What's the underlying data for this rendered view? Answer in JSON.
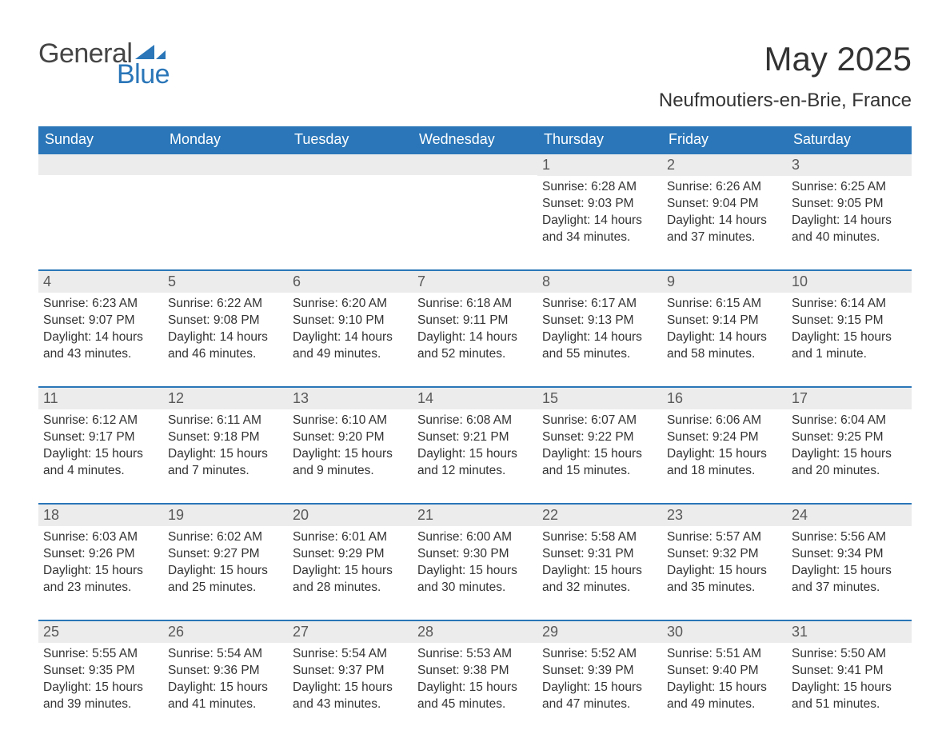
{
  "logo": {
    "text_general": "General",
    "text_blue": "Blue",
    "icon_color": "#2a76b8"
  },
  "title": "May 2025",
  "subtitle": "Neufmoutiers-en-Brie, France",
  "colors": {
    "header_bg": "#2a76b8",
    "header_text": "#ffffff",
    "daynum_bg": "#ececec",
    "daynum_text": "#595959",
    "body_text": "#333333",
    "page_bg": "#ffffff",
    "week_border": "#2a76b8"
  },
  "fonts": {
    "family": "Arial",
    "title_size_pt": 32,
    "subtitle_size_pt": 18,
    "header_size_pt": 14,
    "daynum_size_pt": 14,
    "body_size_pt": 12
  },
  "day_headers": [
    "Sunday",
    "Monday",
    "Tuesday",
    "Wednesday",
    "Thursday",
    "Friday",
    "Saturday"
  ],
  "weeks": [
    [
      {
        "empty": true
      },
      {
        "empty": true
      },
      {
        "empty": true
      },
      {
        "empty": true
      },
      {
        "num": "1",
        "sunrise": "Sunrise: 6:28 AM",
        "sunset": "Sunset: 9:03 PM",
        "daylight1": "Daylight: 14 hours",
        "daylight2": "and 34 minutes."
      },
      {
        "num": "2",
        "sunrise": "Sunrise: 6:26 AM",
        "sunset": "Sunset: 9:04 PM",
        "daylight1": "Daylight: 14 hours",
        "daylight2": "and 37 minutes."
      },
      {
        "num": "3",
        "sunrise": "Sunrise: 6:25 AM",
        "sunset": "Sunset: 9:05 PM",
        "daylight1": "Daylight: 14 hours",
        "daylight2": "and 40 minutes."
      }
    ],
    [
      {
        "num": "4",
        "sunrise": "Sunrise: 6:23 AM",
        "sunset": "Sunset: 9:07 PM",
        "daylight1": "Daylight: 14 hours",
        "daylight2": "and 43 minutes."
      },
      {
        "num": "5",
        "sunrise": "Sunrise: 6:22 AM",
        "sunset": "Sunset: 9:08 PM",
        "daylight1": "Daylight: 14 hours",
        "daylight2": "and 46 minutes."
      },
      {
        "num": "6",
        "sunrise": "Sunrise: 6:20 AM",
        "sunset": "Sunset: 9:10 PM",
        "daylight1": "Daylight: 14 hours",
        "daylight2": "and 49 minutes."
      },
      {
        "num": "7",
        "sunrise": "Sunrise: 6:18 AM",
        "sunset": "Sunset: 9:11 PM",
        "daylight1": "Daylight: 14 hours",
        "daylight2": "and 52 minutes."
      },
      {
        "num": "8",
        "sunrise": "Sunrise: 6:17 AM",
        "sunset": "Sunset: 9:13 PM",
        "daylight1": "Daylight: 14 hours",
        "daylight2": "and 55 minutes."
      },
      {
        "num": "9",
        "sunrise": "Sunrise: 6:15 AM",
        "sunset": "Sunset: 9:14 PM",
        "daylight1": "Daylight: 14 hours",
        "daylight2": "and 58 minutes."
      },
      {
        "num": "10",
        "sunrise": "Sunrise: 6:14 AM",
        "sunset": "Sunset: 9:15 PM",
        "daylight1": "Daylight: 15 hours",
        "daylight2": "and 1 minute."
      }
    ],
    [
      {
        "num": "11",
        "sunrise": "Sunrise: 6:12 AM",
        "sunset": "Sunset: 9:17 PM",
        "daylight1": "Daylight: 15 hours",
        "daylight2": "and 4 minutes."
      },
      {
        "num": "12",
        "sunrise": "Sunrise: 6:11 AM",
        "sunset": "Sunset: 9:18 PM",
        "daylight1": "Daylight: 15 hours",
        "daylight2": "and 7 minutes."
      },
      {
        "num": "13",
        "sunrise": "Sunrise: 6:10 AM",
        "sunset": "Sunset: 9:20 PM",
        "daylight1": "Daylight: 15 hours",
        "daylight2": "and 9 minutes."
      },
      {
        "num": "14",
        "sunrise": "Sunrise: 6:08 AM",
        "sunset": "Sunset: 9:21 PM",
        "daylight1": "Daylight: 15 hours",
        "daylight2": "and 12 minutes."
      },
      {
        "num": "15",
        "sunrise": "Sunrise: 6:07 AM",
        "sunset": "Sunset: 9:22 PM",
        "daylight1": "Daylight: 15 hours",
        "daylight2": "and 15 minutes."
      },
      {
        "num": "16",
        "sunrise": "Sunrise: 6:06 AM",
        "sunset": "Sunset: 9:24 PM",
        "daylight1": "Daylight: 15 hours",
        "daylight2": "and 18 minutes."
      },
      {
        "num": "17",
        "sunrise": "Sunrise: 6:04 AM",
        "sunset": "Sunset: 9:25 PM",
        "daylight1": "Daylight: 15 hours",
        "daylight2": "and 20 minutes."
      }
    ],
    [
      {
        "num": "18",
        "sunrise": "Sunrise: 6:03 AM",
        "sunset": "Sunset: 9:26 PM",
        "daylight1": "Daylight: 15 hours",
        "daylight2": "and 23 minutes."
      },
      {
        "num": "19",
        "sunrise": "Sunrise: 6:02 AM",
        "sunset": "Sunset: 9:27 PM",
        "daylight1": "Daylight: 15 hours",
        "daylight2": "and 25 minutes."
      },
      {
        "num": "20",
        "sunrise": "Sunrise: 6:01 AM",
        "sunset": "Sunset: 9:29 PM",
        "daylight1": "Daylight: 15 hours",
        "daylight2": "and 28 minutes."
      },
      {
        "num": "21",
        "sunrise": "Sunrise: 6:00 AM",
        "sunset": "Sunset: 9:30 PM",
        "daylight1": "Daylight: 15 hours",
        "daylight2": "and 30 minutes."
      },
      {
        "num": "22",
        "sunrise": "Sunrise: 5:58 AM",
        "sunset": "Sunset: 9:31 PM",
        "daylight1": "Daylight: 15 hours",
        "daylight2": "and 32 minutes."
      },
      {
        "num": "23",
        "sunrise": "Sunrise: 5:57 AM",
        "sunset": "Sunset: 9:32 PM",
        "daylight1": "Daylight: 15 hours",
        "daylight2": "and 35 minutes."
      },
      {
        "num": "24",
        "sunrise": "Sunrise: 5:56 AM",
        "sunset": "Sunset: 9:34 PM",
        "daylight1": "Daylight: 15 hours",
        "daylight2": "and 37 minutes."
      }
    ],
    [
      {
        "num": "25",
        "sunrise": "Sunrise: 5:55 AM",
        "sunset": "Sunset: 9:35 PM",
        "daylight1": "Daylight: 15 hours",
        "daylight2": "and 39 minutes."
      },
      {
        "num": "26",
        "sunrise": "Sunrise: 5:54 AM",
        "sunset": "Sunset: 9:36 PM",
        "daylight1": "Daylight: 15 hours",
        "daylight2": "and 41 minutes."
      },
      {
        "num": "27",
        "sunrise": "Sunrise: 5:54 AM",
        "sunset": "Sunset: 9:37 PM",
        "daylight1": "Daylight: 15 hours",
        "daylight2": "and 43 minutes."
      },
      {
        "num": "28",
        "sunrise": "Sunrise: 5:53 AM",
        "sunset": "Sunset: 9:38 PM",
        "daylight1": "Daylight: 15 hours",
        "daylight2": "and 45 minutes."
      },
      {
        "num": "29",
        "sunrise": "Sunrise: 5:52 AM",
        "sunset": "Sunset: 9:39 PM",
        "daylight1": "Daylight: 15 hours",
        "daylight2": "and 47 minutes."
      },
      {
        "num": "30",
        "sunrise": "Sunrise: 5:51 AM",
        "sunset": "Sunset: 9:40 PM",
        "daylight1": "Daylight: 15 hours",
        "daylight2": "and 49 minutes."
      },
      {
        "num": "31",
        "sunrise": "Sunrise: 5:50 AM",
        "sunset": "Sunset: 9:41 PM",
        "daylight1": "Daylight: 15 hours",
        "daylight2": "and 51 minutes."
      }
    ]
  ]
}
